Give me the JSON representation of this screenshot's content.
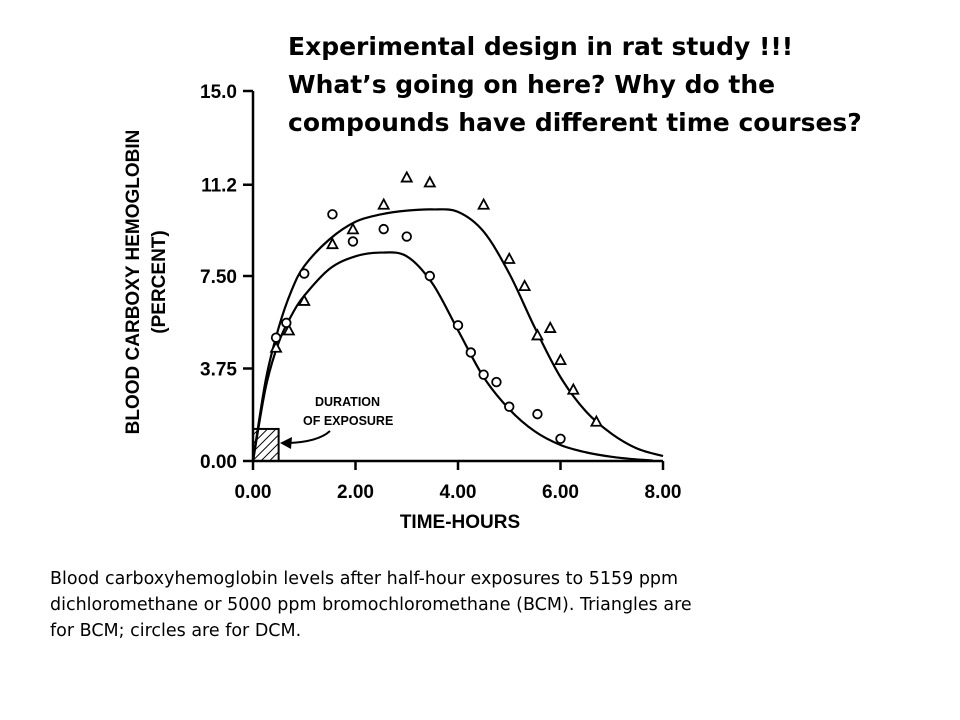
{
  "headline": {
    "line1": "Experimental design in rat study !!!",
    "line2": "What’s going on here? Why do the",
    "line3": "compounds have different time courses?"
  },
  "caption": {
    "line1": "Blood carboxyhemoglobin levels after half-hour exposures to 5159 ppm",
    "line2": "dichloromethane or 5000 ppm bromochloromethane (BCM). Triangles are",
    "line3": "for BCM; circles are for DCM."
  },
  "chart_data": {
    "type": "scatter",
    "xlabel": "TIME-HOURS",
    "ylabel_line1": "BLOOD CARBOXY HEMOGLOBIN",
    "ylabel_line2": "(PERCENT)",
    "xlim": [
      0,
      8
    ],
    "ylim": [
      0,
      15
    ],
    "x_ticks": [
      "0.00",
      "2.00",
      "4.00",
      "6.00",
      "8.00"
    ],
    "y_ticks": [
      "0.00",
      "3.75",
      "7.50",
      "11.2",
      "15.0"
    ],
    "grid": false,
    "annotation": {
      "line1": "DURATION",
      "line2": "OF EXPOSURE",
      "exposure_interval_hours": [
        0,
        0.5
      ],
      "exposure_bar_height_percent": 1.3
    },
    "series": [
      {
        "marker": "triangle",
        "points": [
          [
            0.45,
            4.6
          ],
          [
            0.7,
            5.3
          ],
          [
            1.0,
            6.5
          ],
          [
            1.55,
            8.8
          ],
          [
            1.95,
            9.4
          ],
          [
            2.55,
            10.4
          ],
          [
            3.0,
            11.5
          ],
          [
            3.45,
            11.3
          ],
          [
            4.5,
            10.4
          ],
          [
            5.0,
            8.2
          ],
          [
            5.3,
            7.1
          ],
          [
            5.55,
            5.1
          ],
          [
            5.8,
            5.4
          ],
          [
            6.0,
            4.1
          ],
          [
            6.25,
            2.9
          ],
          [
            6.7,
            1.6
          ]
        ],
        "curve": [
          [
            0,
            0
          ],
          [
            0.25,
            3.3
          ],
          [
            0.5,
            5.4
          ],
          [
            0.75,
            6.9
          ],
          [
            1.0,
            7.9
          ],
          [
            1.5,
            9.0
          ],
          [
            2.0,
            9.7
          ],
          [
            2.5,
            10.0
          ],
          [
            3.0,
            10.15
          ],
          [
            3.5,
            10.2
          ],
          [
            4.0,
            10.1
          ],
          [
            4.5,
            9.3
          ],
          [
            5.0,
            7.6
          ],
          [
            5.5,
            5.4
          ],
          [
            6.0,
            3.4
          ],
          [
            6.5,
            2.0
          ],
          [
            7.0,
            1.1
          ],
          [
            7.5,
            0.5
          ],
          [
            8.0,
            0.2
          ]
        ]
      },
      {
        "marker": "circle",
        "points": [
          [
            0.45,
            5.0
          ],
          [
            0.65,
            5.6
          ],
          [
            1.0,
            7.6
          ],
          [
            1.55,
            10.0
          ],
          [
            1.95,
            8.9
          ],
          [
            2.55,
            9.4
          ],
          [
            3.0,
            9.1
          ],
          [
            3.45,
            7.5
          ],
          [
            4.0,
            5.5
          ],
          [
            4.25,
            4.4
          ],
          [
            4.5,
            3.5
          ],
          [
            4.75,
            3.2
          ],
          [
            5.0,
            2.2
          ],
          [
            5.55,
            1.9
          ],
          [
            6.0,
            0.9
          ]
        ],
        "curve": [
          [
            0,
            0
          ],
          [
            0.25,
            3.0
          ],
          [
            0.5,
            4.8
          ],
          [
            0.75,
            5.9
          ],
          [
            1.0,
            6.7
          ],
          [
            1.5,
            7.8
          ],
          [
            2.0,
            8.3
          ],
          [
            2.5,
            8.45
          ],
          [
            3.0,
            8.3
          ],
          [
            3.5,
            7.2
          ],
          [
            4.0,
            5.3
          ],
          [
            4.5,
            3.4
          ],
          [
            5.0,
            2.1
          ],
          [
            5.5,
            1.2
          ],
          [
            6.0,
            0.65
          ],
          [
            6.5,
            0.35
          ],
          [
            7.0,
            0.17
          ],
          [
            7.5,
            0.06
          ],
          [
            7.8,
            0.02
          ]
        ]
      }
    ]
  }
}
